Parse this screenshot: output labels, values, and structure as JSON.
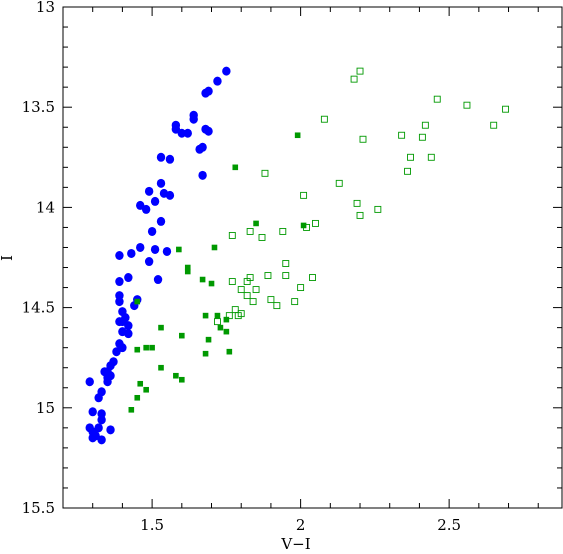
{
  "chart_data": {
    "type": "scatter",
    "xlabel": "V−I",
    "ylabel": "I",
    "xlim": [
      1.2,
      2.88
    ],
    "ylim": [
      15.5,
      13.0
    ],
    "y_inverted": true,
    "xticks": [
      {
        "value": 1.5,
        "label": "1.5"
      },
      {
        "value": 2.0,
        "label": "2"
      },
      {
        "value": 2.5,
        "label": "2.5"
      }
    ],
    "yticks": [
      {
        "value": 13.0,
        "label": "13"
      },
      {
        "value": 13.5,
        "label": "13.5"
      },
      {
        "value": 14.0,
        "label": "14"
      },
      {
        "value": 14.5,
        "label": "14.5"
      },
      {
        "value": 15.0,
        "label": "15"
      },
      {
        "value": 15.5,
        "label": "15.5"
      }
    ],
    "grid": false,
    "legend": "none",
    "series": [
      {
        "marker": "filled-circle",
        "color": "#0000ff",
        "points": [
          [
            1.75,
            13.32
          ],
          [
            1.72,
            13.37
          ],
          [
            1.69,
            13.42
          ],
          [
            1.68,
            13.43
          ],
          [
            1.64,
            13.54
          ],
          [
            1.64,
            13.56
          ],
          [
            1.58,
            13.59
          ],
          [
            1.58,
            13.61
          ],
          [
            1.68,
            13.61
          ],
          [
            1.69,
            13.62
          ],
          [
            1.6,
            13.63
          ],
          [
            1.62,
            13.63
          ],
          [
            1.66,
            13.71
          ],
          [
            1.67,
            13.7
          ],
          [
            1.53,
            13.75
          ],
          [
            1.56,
            13.76
          ],
          [
            1.53,
            13.88
          ],
          [
            1.49,
            13.92
          ],
          [
            1.54,
            13.93
          ],
          [
            1.56,
            13.94
          ],
          [
            1.67,
            13.84
          ],
          [
            1.51,
            13.97
          ],
          [
            1.46,
            13.99
          ],
          [
            1.48,
            14.01
          ],
          [
            1.53,
            14.07
          ],
          [
            1.5,
            14.12
          ],
          [
            1.51,
            14.21
          ],
          [
            1.46,
            14.2
          ],
          [
            1.55,
            14.22
          ],
          [
            1.43,
            14.23
          ],
          [
            1.39,
            14.24
          ],
          [
            1.49,
            14.27
          ],
          [
            1.42,
            14.35
          ],
          [
            1.52,
            14.36
          ],
          [
            1.39,
            14.37
          ],
          [
            1.39,
            14.44
          ],
          [
            1.45,
            14.46
          ],
          [
            1.39,
            14.47
          ],
          [
            1.44,
            14.49
          ],
          [
            1.4,
            14.52
          ],
          [
            1.41,
            14.55
          ],
          [
            1.4,
            14.57
          ],
          [
            1.39,
            14.57
          ],
          [
            1.42,
            14.59
          ],
          [
            1.4,
            14.62
          ],
          [
            1.42,
            14.63
          ],
          [
            1.39,
            14.68
          ],
          [
            1.4,
            14.7
          ],
          [
            1.38,
            14.72
          ],
          [
            1.37,
            14.77
          ],
          [
            1.36,
            14.79
          ],
          [
            1.35,
            14.82
          ],
          [
            1.34,
            14.82
          ],
          [
            1.35,
            14.85
          ],
          [
            1.36,
            14.84
          ],
          [
            1.35,
            14.87
          ],
          [
            1.29,
            14.87
          ],
          [
            1.33,
            14.92
          ],
          [
            1.32,
            14.95
          ],
          [
            1.3,
            15.02
          ],
          [
            1.33,
            15.03
          ],
          [
            1.33,
            15.06
          ],
          [
            1.29,
            15.1
          ],
          [
            1.32,
            15.1
          ],
          [
            1.3,
            15.12
          ],
          [
            1.36,
            15.11
          ],
          [
            1.31,
            15.14
          ],
          [
            1.3,
            15.15
          ],
          [
            1.33,
            15.16
          ]
        ]
      },
      {
        "marker": "filled-square",
        "color": "#009900",
        "points": [
          [
            1.99,
            13.64
          ],
          [
            1.78,
            13.8
          ],
          [
            1.85,
            14.08
          ],
          [
            2.01,
            14.09
          ],
          [
            1.59,
            14.21
          ],
          [
            1.71,
            14.2
          ],
          [
            1.62,
            14.3
          ],
          [
            1.62,
            14.32
          ],
          [
            1.67,
            14.36
          ],
          [
            1.7,
            14.38
          ],
          [
            1.45,
            14.47
          ],
          [
            1.72,
            14.54
          ],
          [
            1.73,
            14.6
          ],
          [
            1.68,
            14.54
          ],
          [
            1.75,
            14.56
          ],
          [
            1.53,
            14.6
          ],
          [
            1.75,
            14.62
          ],
          [
            1.6,
            14.64
          ],
          [
            1.69,
            14.66
          ],
          [
            1.5,
            14.7
          ],
          [
            1.48,
            14.7
          ],
          [
            1.45,
            14.71
          ],
          [
            1.68,
            14.73
          ],
          [
            1.76,
            14.72
          ],
          [
            1.53,
            14.8
          ],
          [
            1.58,
            14.84
          ],
          [
            1.6,
            14.86
          ],
          [
            1.46,
            14.88
          ],
          [
            1.48,
            14.91
          ],
          [
            1.45,
            14.95
          ],
          [
            1.43,
            15.01
          ]
        ]
      },
      {
        "marker": "open-square",
        "color": "#009900",
        "points": [
          [
            2.2,
            13.32
          ],
          [
            2.18,
            13.36
          ],
          [
            2.46,
            13.46
          ],
          [
            2.56,
            13.49
          ],
          [
            2.69,
            13.51
          ],
          [
            2.08,
            13.56
          ],
          [
            2.42,
            13.59
          ],
          [
            2.65,
            13.59
          ],
          [
            2.34,
            13.64
          ],
          [
            2.41,
            13.65
          ],
          [
            2.21,
            13.66
          ],
          [
            2.37,
            13.75
          ],
          [
            2.44,
            13.75
          ],
          [
            2.36,
            13.82
          ],
          [
            1.88,
            13.83
          ],
          [
            2.13,
            13.88
          ],
          [
            2.01,
            13.94
          ],
          [
            2.19,
            13.98
          ],
          [
            2.26,
            14.01
          ],
          [
            2.2,
            14.04
          ],
          [
            2.05,
            14.08
          ],
          [
            2.02,
            14.1
          ],
          [
            1.94,
            14.12
          ],
          [
            1.83,
            14.12
          ],
          [
            1.77,
            14.14
          ],
          [
            1.87,
            14.15
          ],
          [
            1.95,
            14.28
          ],
          [
            1.89,
            14.34
          ],
          [
            1.95,
            14.34
          ],
          [
            2.04,
            14.35
          ],
          [
            1.83,
            14.35
          ],
          [
            1.77,
            14.37
          ],
          [
            1.82,
            14.37
          ],
          [
            2.0,
            14.4
          ],
          [
            1.8,
            14.41
          ],
          [
            1.85,
            14.41
          ],
          [
            1.82,
            14.44
          ],
          [
            1.9,
            14.46
          ],
          [
            1.84,
            14.47
          ],
          [
            1.98,
            14.47
          ],
          [
            1.92,
            14.49
          ],
          [
            1.78,
            14.51
          ],
          [
            1.8,
            14.53
          ],
          [
            1.79,
            14.54
          ],
          [
            1.76,
            14.54
          ],
          [
            1.72,
            14.57
          ]
        ]
      }
    ]
  }
}
